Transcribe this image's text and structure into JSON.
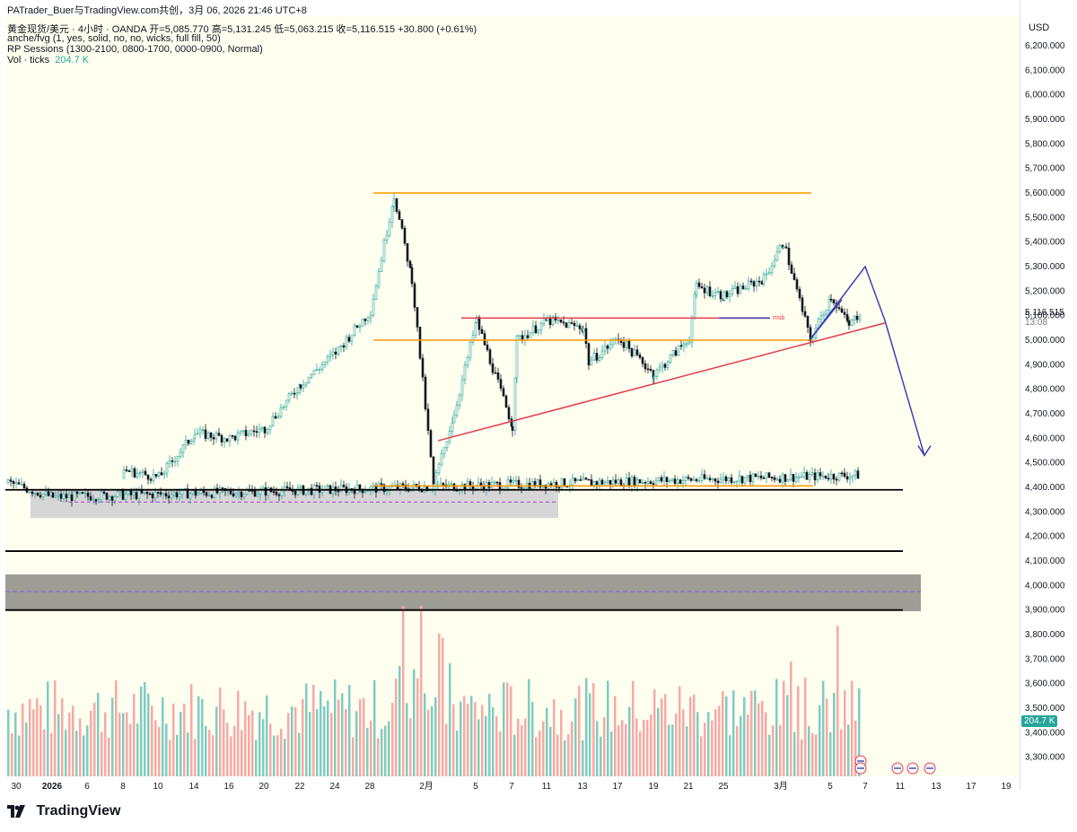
{
  "header": {
    "title": "PATrader_Buer与TradingView.com共创，3月 06, 2026 21:46 UTC+8",
    "symbol_line": "黄金现货/美元 · 4小时 · OANDA  开=5,085.770  高=5,131.245  低=5,063.215  收=5,116.515  +30.800 (+0.61%)",
    "indicator_1": "anche/fvg (1, yes, solid, no, no, wicks, full fill, 50)",
    "indicator_2": "RP Sessions (1300-2100, 0800-1700, 0000-0900, Normal)",
    "indicator_3_label": "Vol · ticks",
    "indicator_3_value": "204.7 K"
  },
  "price_scale": {
    "currency": "USD",
    "ticks": [
      "6,200.000",
      "6,100.000",
      "6,000.000",
      "5,900.000",
      "5,800.000",
      "5,700.000",
      "5,600.000",
      "5,500.000",
      "5,400.000",
      "5,300.000",
      "5,200.000",
      "5,100.000",
      "5,000.000",
      "4,900.000",
      "4,800.000",
      "4,700.000",
      "4,600.000",
      "4,500.000",
      "4,400.000",
      "4,300.000",
      "4,200.000",
      "4,100.000",
      "4,000.000",
      "3,900.000",
      "3,800.000",
      "3,700.000",
      "3,600.000",
      "3,500.000",
      "3,400.000",
      "3,300.000"
    ],
    "last_price": "5,116.515",
    "countdown": "13:08",
    "volume_tag": "204.7 K"
  },
  "time_scale": {
    "labels": [
      "30",
      "2026",
      "6",
      "8",
      "10",
      "14",
      "16",
      "20",
      "22",
      "24",
      "28",
      "2月",
      "5",
      "7",
      "11",
      "13",
      "17",
      "19",
      "21",
      "25",
      "3月",
      "5",
      "7",
      "11",
      "13",
      "17",
      "19"
    ]
  },
  "annotations": {
    "msb": "msb"
  },
  "footer": {
    "brand": "TradingView"
  },
  "colors": {
    "background": "#fffff0",
    "up": "#26a69a",
    "down": "#ef5350",
    "orange": "#ff9800",
    "red_line": "#e53950",
    "blue_line": "#3f3fb5",
    "zone": "#b2b2b2"
  },
  "chart_data": {
    "type": "candlestick",
    "title": "黄金现货/美元 · 4小时 · OANDA",
    "ylabel": "USD",
    "ylim": [
      3250,
      6250
    ],
    "ohlc_last": {
      "open": 5085.77,
      "high": 5131.245,
      "low": 5063.215,
      "close": 5116.515,
      "change": 30.8,
      "change_pct": 0.61
    },
    "price_path": [
      [
        "30",
        4420
      ],
      [
        "2026",
        4360
      ],
      [
        "6",
        4450
      ],
      [
        "8",
        4470
      ],
      [
        "10",
        4440
      ],
      [
        "14",
        4620
      ],
      [
        "16",
        4600
      ],
      [
        "20",
        4640
      ],
      [
        "22",
        4820
      ],
      [
        "24",
        4950
      ],
      [
        "28",
        5120
      ],
      [
        "28b",
        5590
      ],
      [
        "2月a",
        5250
      ],
      [
        "2月",
        4410
      ],
      [
        "5a",
        4700
      ],
      [
        "5",
        5080
      ],
      [
        "7",
        4650
      ],
      [
        "7b",
        5000
      ],
      [
        "11",
        5080
      ],
      [
        "13",
        5050
      ],
      [
        "13b",
        4910
      ],
      [
        "17",
        5010
      ],
      [
        "19",
        4860
      ],
      [
        "21",
        5010
      ],
      [
        "21b",
        5220
      ],
      [
        "25",
        5180
      ],
      [
        "3月a",
        5250
      ],
      [
        "3月",
        5400
      ],
      [
        "5a",
        5000
      ],
      [
        "5",
        5180
      ],
      [
        "5b",
        5060
      ],
      [
        "6",
        5116
      ]
    ],
    "levels": [
      {
        "name": "high-resistance",
        "price": 5600,
        "color": "#ff9800"
      },
      {
        "name": "mid-support",
        "price": 5000,
        "color": "#ff9800"
      },
      {
        "name": "range-top",
        "price": 5090,
        "color": "#e53950"
      },
      {
        "name": "low-support",
        "price": 4395,
        "color": "#ff9800"
      },
      {
        "name": "black-level-1",
        "price": 4390,
        "color": "#000000"
      },
      {
        "name": "black-level-2",
        "price": 4140,
        "color": "#000000"
      },
      {
        "name": "black-level-3",
        "price": 3900,
        "color": "#000000"
      }
    ],
    "zones": [
      {
        "name": "upper-gap",
        "from": 4275,
        "to": 4395,
        "mid": 4340
      },
      {
        "name": "lower-gap",
        "from": 3895,
        "to": 4045,
        "mid": 3975
      }
    ],
    "trendline": {
      "from": [
        "2月",
        4590
      ],
      "to": [
        "5b",
        5070
      ]
    },
    "projection": [
      [
        "5",
        5000
      ],
      [
        "5a",
        5300
      ],
      [
        "5b",
        5080
      ],
      [
        "19",
        4530
      ]
    ],
    "volume_last": 204.7
  }
}
